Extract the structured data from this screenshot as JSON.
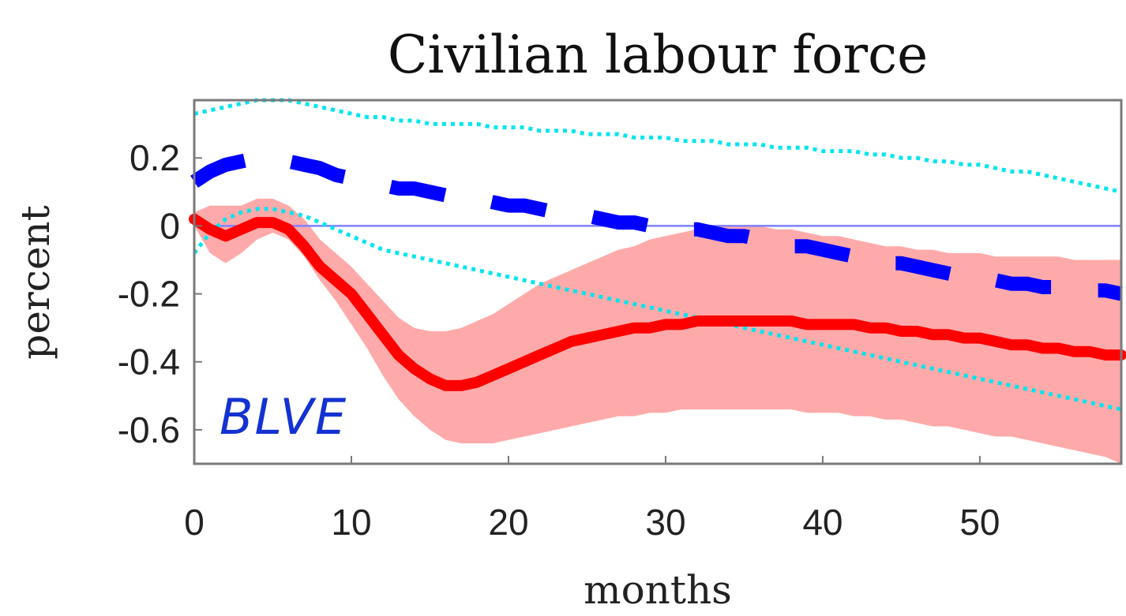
{
  "chart_data": {
    "type": "line",
    "title": "Civilian labour force",
    "xlabel": "months",
    "ylabel": "percent",
    "xlim": [
      0,
      59
    ],
    "ylim": [
      -0.7,
      0.37
    ],
    "xticks": [
      0,
      10,
      20,
      30,
      40,
      50
    ],
    "yticks": [
      0.2,
      0,
      -0.2,
      -0.4,
      -0.6
    ],
    "ytick_labels": [
      "0.2",
      "0",
      "-0.2",
      "-0.4",
      "-0.6"
    ],
    "grid": false,
    "legend": "none",
    "zero_line": 0,
    "annotation": "BLVE",
    "x": [
      0,
      1,
      2,
      3,
      4,
      5,
      6,
      7,
      8,
      9,
      10,
      11,
      12,
      13,
      14,
      15,
      16,
      17,
      18,
      19,
      20,
      21,
      22,
      23,
      24,
      25,
      26,
      27,
      28,
      29,
      30,
      31,
      32,
      33,
      34,
      35,
      36,
      37,
      38,
      39,
      40,
      41,
      42,
      43,
      44,
      45,
      46,
      47,
      48,
      49,
      50,
      51,
      52,
      53,
      54,
      55,
      56,
      57,
      58,
      59
    ],
    "series": [
      {
        "color": "#ff0000",
        "style": "solid",
        "values": [
          0.02,
          -0.01,
          -0.03,
          -0.01,
          0.01,
          0.01,
          -0.01,
          -0.06,
          -0.12,
          -0.16,
          -0.2,
          -0.26,
          -0.32,
          -0.38,
          -0.42,
          -0.45,
          -0.47,
          -0.47,
          -0.46,
          -0.44,
          -0.42,
          -0.4,
          -0.38,
          -0.36,
          -0.34,
          -0.33,
          -0.32,
          -0.31,
          -0.3,
          -0.3,
          -0.29,
          -0.29,
          -0.28,
          -0.28,
          -0.28,
          -0.28,
          -0.28,
          -0.28,
          -0.28,
          -0.29,
          -0.29,
          -0.29,
          -0.29,
          -0.3,
          -0.3,
          -0.31,
          -0.31,
          -0.32,
          -0.32,
          -0.33,
          -0.33,
          -0.34,
          -0.35,
          -0.35,
          -0.36,
          -0.36,
          -0.37,
          -0.37,
          -0.38,
          -0.38
        ]
      },
      {
        "color": "#0000ff",
        "style": "dashed",
        "values": [
          0.13,
          0.16,
          0.18,
          0.19,
          0.2,
          0.2,
          0.19,
          0.18,
          0.17,
          0.15,
          0.14,
          0.13,
          0.12,
          0.11,
          0.11,
          0.1,
          0.09,
          0.09,
          0.08,
          0.07,
          0.06,
          0.06,
          0.05,
          0.04,
          0.04,
          0.03,
          0.02,
          0.01,
          0.01,
          0.0,
          0.0,
          -0.01,
          -0.01,
          -0.02,
          -0.03,
          -0.03,
          -0.04,
          -0.05,
          -0.06,
          -0.06,
          -0.07,
          -0.08,
          -0.09,
          -0.1,
          -0.11,
          -0.11,
          -0.12,
          -0.13,
          -0.14,
          -0.15,
          -0.15,
          -0.16,
          -0.17,
          -0.17,
          -0.18,
          -0.18,
          -0.19,
          -0.19,
          -0.19,
          -0.2
        ]
      },
      {
        "color": "#00e5ee",
        "style": "dotted",
        "values": [
          0.33,
          0.34,
          0.35,
          0.36,
          0.37,
          0.37,
          0.37,
          0.36,
          0.35,
          0.34,
          0.33,
          0.32,
          0.32,
          0.31,
          0.31,
          0.3,
          0.3,
          0.3,
          0.3,
          0.29,
          0.29,
          0.29,
          0.28,
          0.28,
          0.28,
          0.27,
          0.27,
          0.27,
          0.26,
          0.26,
          0.26,
          0.25,
          0.25,
          0.25,
          0.24,
          0.24,
          0.24,
          0.23,
          0.23,
          0.23,
          0.22,
          0.22,
          0.22,
          0.21,
          0.21,
          0.2,
          0.2,
          0.19,
          0.19,
          0.18,
          0.18,
          0.17,
          0.16,
          0.16,
          0.15,
          0.14,
          0.13,
          0.12,
          0.11,
          0.1
        ]
      },
      {
        "color": "#00e5ee",
        "style": "dotted",
        "values": [
          -0.08,
          -0.02,
          0.02,
          0.04,
          0.05,
          0.05,
          0.04,
          0.03,
          0.01,
          -0.01,
          -0.03,
          -0.05,
          -0.07,
          -0.08,
          -0.09,
          -0.1,
          -0.11,
          -0.12,
          -0.13,
          -0.14,
          -0.15,
          -0.16,
          -0.17,
          -0.18,
          -0.19,
          -0.2,
          -0.21,
          -0.22,
          -0.23,
          -0.24,
          -0.25,
          -0.26,
          -0.27,
          -0.28,
          -0.29,
          -0.3,
          -0.31,
          -0.32,
          -0.33,
          -0.34,
          -0.35,
          -0.36,
          -0.37,
          -0.38,
          -0.39,
          -0.4,
          -0.41,
          -0.42,
          -0.43,
          -0.44,
          -0.45,
          -0.46,
          -0.47,
          -0.48,
          -0.49,
          -0.5,
          -0.51,
          -0.52,
          -0.53,
          -0.54
        ]
      }
    ],
    "band": {
      "color": "#ffaaaa",
      "lower": [
        0.0,
        -0.08,
        -0.11,
        -0.08,
        -0.04,
        -0.02,
        -0.04,
        -0.09,
        -0.16,
        -0.22,
        -0.29,
        -0.36,
        -0.44,
        -0.51,
        -0.56,
        -0.6,
        -0.63,
        -0.64,
        -0.64,
        -0.64,
        -0.63,
        -0.62,
        -0.61,
        -0.6,
        -0.59,
        -0.58,
        -0.57,
        -0.56,
        -0.56,
        -0.55,
        -0.55,
        -0.54,
        -0.54,
        -0.54,
        -0.54,
        -0.54,
        -0.54,
        -0.54,
        -0.54,
        -0.55,
        -0.55,
        -0.55,
        -0.56,
        -0.56,
        -0.57,
        -0.57,
        -0.58,
        -0.59,
        -0.59,
        -0.6,
        -0.61,
        -0.62,
        -0.62,
        -0.63,
        -0.64,
        -0.65,
        -0.66,
        -0.67,
        -0.68,
        -0.7
      ],
      "upper": [
        0.04,
        0.06,
        0.06,
        0.06,
        0.08,
        0.08,
        0.06,
        0.02,
        -0.04,
        -0.08,
        -0.12,
        -0.17,
        -0.22,
        -0.27,
        -0.3,
        -0.31,
        -0.31,
        -0.3,
        -0.28,
        -0.26,
        -0.23,
        -0.2,
        -0.17,
        -0.15,
        -0.13,
        -0.11,
        -0.09,
        -0.07,
        -0.06,
        -0.04,
        -0.03,
        -0.02,
        -0.01,
        0.0,
        0.0,
        0.0,
        0.0,
        -0.01,
        -0.01,
        -0.02,
        -0.03,
        -0.03,
        -0.04,
        -0.05,
        -0.06,
        -0.06,
        -0.07,
        -0.07,
        -0.08,
        -0.08,
        -0.08,
        -0.09,
        -0.09,
        -0.09,
        -0.09,
        -0.09,
        -0.1,
        -0.1,
        -0.1,
        -0.1
      ]
    }
  }
}
